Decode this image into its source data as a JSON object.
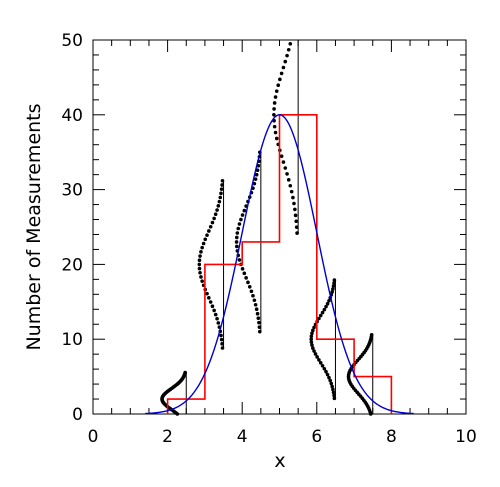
{
  "chart_data": {
    "type": "bar",
    "xlabel": "x",
    "ylabel": "Number of Measurements",
    "xlim": [
      0,
      10
    ],
    "ylim": [
      0,
      50
    ],
    "xticks": [
      0,
      2,
      4,
      6,
      8,
      10
    ],
    "yticks": [
      0,
      10,
      20,
      30,
      40,
      50
    ],
    "grid": false,
    "histogram": {
      "color": "#ff0000",
      "bin_edges": [
        2,
        3,
        4,
        5,
        6,
        7,
        8
      ],
      "counts": [
        2,
        20,
        23,
        40,
        10,
        5
      ]
    },
    "gaussian_fit": {
      "color": "#0000cc",
      "mean": 5,
      "peak": 40,
      "sigma": 1.0
    },
    "error_bars": {
      "color": "#000000",
      "x": [
        2.5,
        3.5,
        4.5,
        5.5,
        6.5,
        7.5
      ],
      "counts": [
        2,
        20,
        23,
        40,
        10,
        5
      ]
    }
  }
}
